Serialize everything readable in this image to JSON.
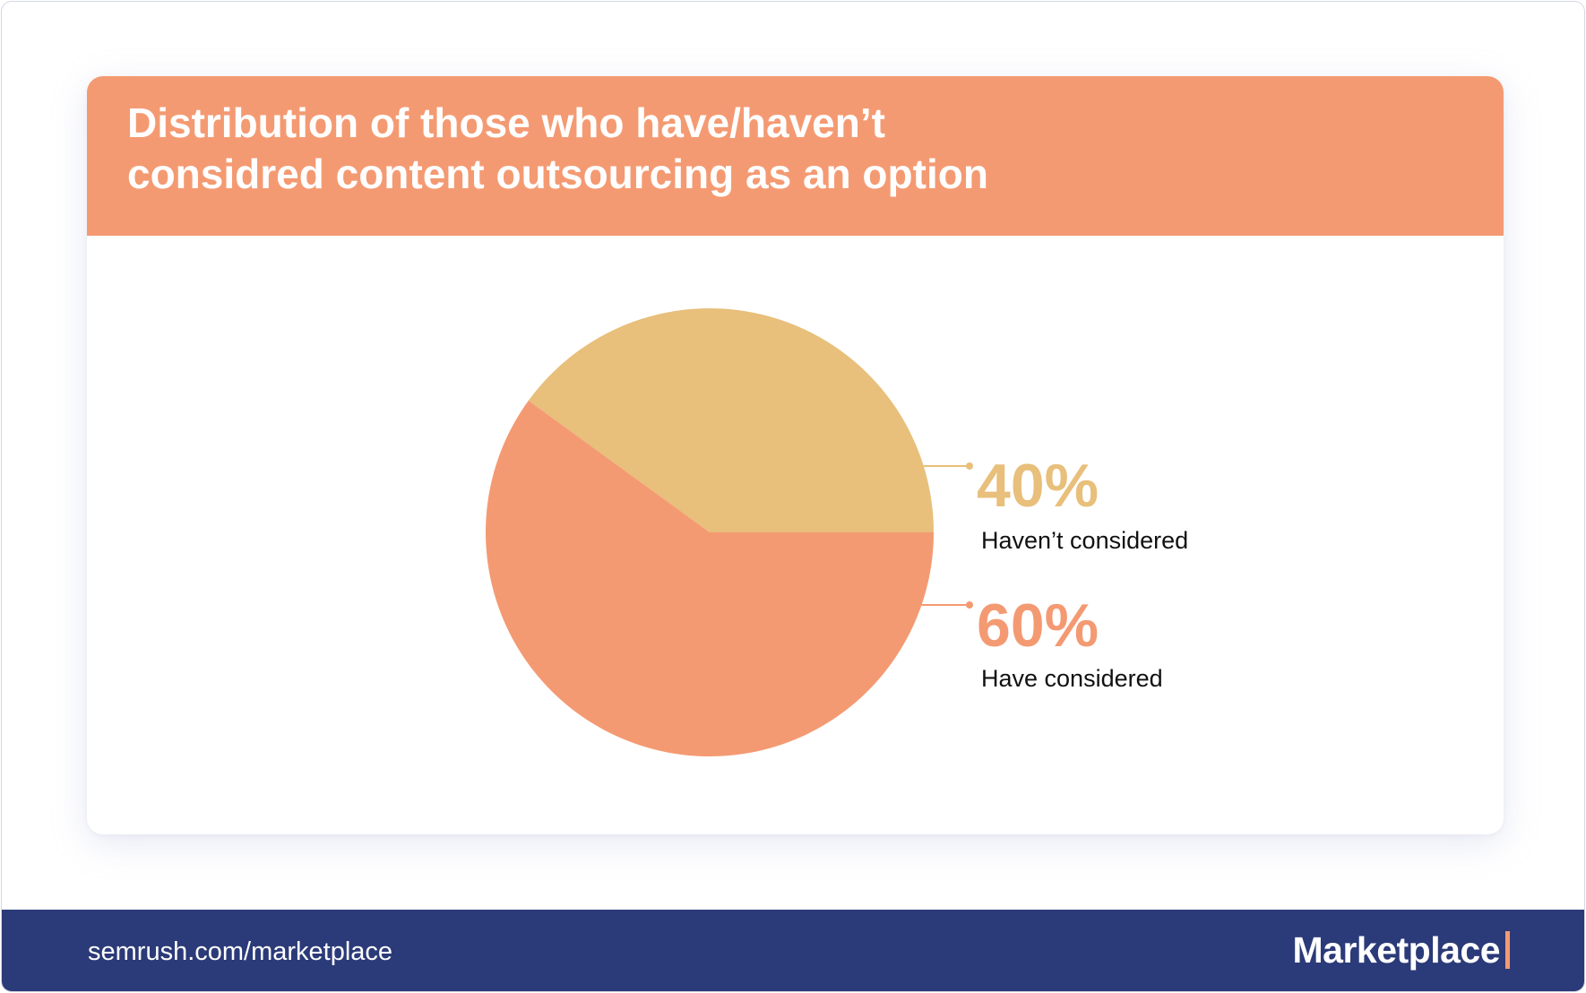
{
  "title_lines": [
    "Distribution of those who have/haven’t",
    "considred content outsourcing as an option"
  ],
  "chart_data": {
    "type": "pie",
    "slices": [
      {
        "name": "Haven’t considered",
        "value": 40,
        "label": "40%",
        "color": "#e8bf7b"
      },
      {
        "name": "Have considered",
        "value": 60,
        "label": "60%",
        "color": "#f49a72"
      }
    ]
  },
  "colors": {
    "header": "#f49a72",
    "footer": "#2b3a78",
    "label_text": "#111111"
  },
  "footer": {
    "url": "semrush.com/marketplace",
    "logo_text": "Marketplace"
  }
}
